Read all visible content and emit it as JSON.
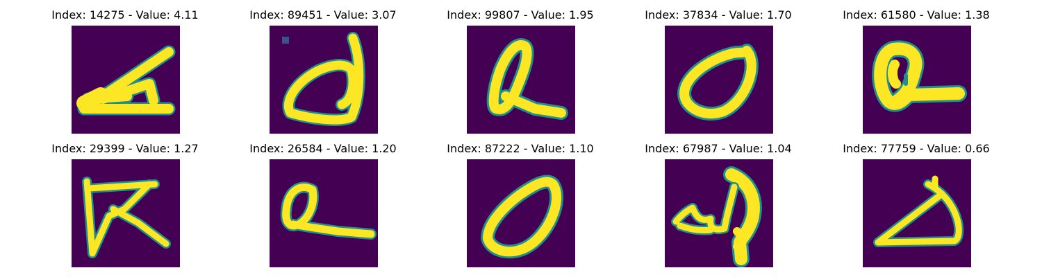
{
  "figure": {
    "cmap": "viridis",
    "background_color": "#ffffff",
    "image_background_color": "#440154",
    "stroke_color": "#fde725",
    "stroke_edge_color": "#21908d",
    "panels": [
      {
        "title": "Index: 14275 - Value: 4.11"
      },
      {
        "title": "Index: 89451 - Value: 3.07"
      },
      {
        "title": "Index: 99807 - Value: 1.95"
      },
      {
        "title": "Index: 37834 - Value: 1.70"
      },
      {
        "title": "Index: 61580 - Value: 1.38"
      },
      {
        "title": "Index: 29399 - Value: 1.27"
      },
      {
        "title": "Index: 26584 - Value: 1.20"
      },
      {
        "title": "Index: 87222 - Value: 1.10"
      },
      {
        "title": "Index: 67987 - Value: 1.04"
      },
      {
        "title": "Index: 77759 - Value: 0.66"
      }
    ]
  }
}
